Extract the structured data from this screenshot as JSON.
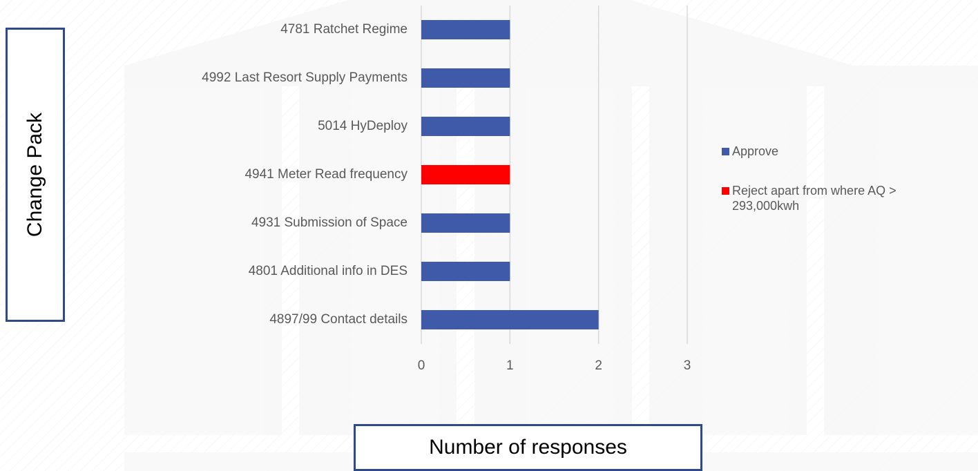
{
  "chart_data": {
    "type": "bar",
    "orientation": "horizontal",
    "stacked": true,
    "categories": [
      "4781 Ratchet Regime",
      "4992 Last Resort Supply Payments",
      "5014 HyDeploy",
      "4941 Meter Read frequency",
      "4931 Submission of Space",
      "4801 Additional info in DES",
      "4897/99 Contact details"
    ],
    "series": [
      {
        "name": "Approve",
        "color": "#3f5aa9",
        "values": [
          1,
          1,
          1,
          null,
          1,
          1,
          2
        ]
      },
      {
        "name": "Reject apart from where AQ > 293,000kwh",
        "color": "#ff0000",
        "values": [
          null,
          null,
          null,
          1,
          null,
          null,
          null
        ]
      }
    ],
    "xlim": [
      0,
      3
    ],
    "xticks": [
      0,
      1,
      2,
      3
    ],
    "grid": true,
    "x_label": "Number of responses",
    "y_label": "Change Pack",
    "legend": "right"
  }
}
